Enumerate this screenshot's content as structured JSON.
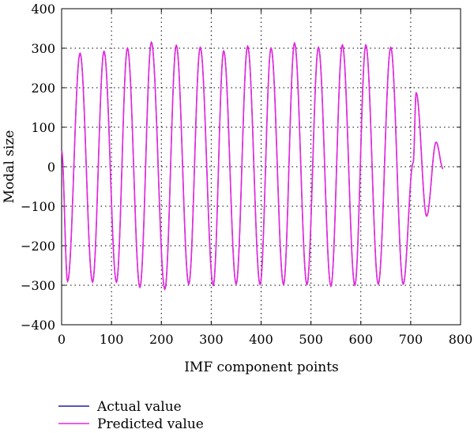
{
  "chart_data": {
    "type": "line",
    "title": "",
    "xlabel": "IMF component points",
    "ylabel": "Modal size",
    "xlim": [
      0,
      800
    ],
    "ylim": [
      -400,
      400
    ],
    "xticks": [
      0,
      100,
      200,
      300,
      400,
      500,
      600,
      700,
      800
    ],
    "yticks": [
      400,
      300,
      200,
      100,
      0,
      -100,
      -200,
      -300,
      -400
    ],
    "grid": true,
    "legend_position": "bottom-left",
    "peaks": [
      [
        0,
        40
      ],
      [
        12,
        -290
      ],
      [
        37,
        287
      ],
      [
        62,
        -292
      ],
      [
        85,
        292
      ],
      [
        110,
        -292
      ],
      [
        132,
        300
      ],
      [
        157,
        -305
      ],
      [
        180,
        315
      ],
      [
        207,
        -310
      ],
      [
        230,
        307
      ],
      [
        255,
        -297
      ],
      [
        278,
        302
      ],
      [
        304,
        -300
      ],
      [
        325,
        293
      ],
      [
        350,
        -297
      ],
      [
        373,
        305
      ],
      [
        398,
        -298
      ],
      [
        420,
        300
      ],
      [
        445,
        -298
      ],
      [
        467,
        313
      ],
      [
        492,
        -298
      ],
      [
        515,
        302
      ],
      [
        540,
        -302
      ],
      [
        563,
        308
      ],
      [
        588,
        -300
      ],
      [
        610,
        308
      ],
      [
        635,
        -297
      ],
      [
        660,
        302
      ],
      [
        685,
        -297
      ],
      [
        705,
        10
      ],
      [
        711,
        187
      ],
      [
        732,
        -125
      ],
      [
        751,
        62
      ],
      [
        765,
        -5
      ]
    ],
    "series": [
      {
        "name": "Actual value",
        "color": "#1f1fa8"
      },
      {
        "name": "Predicted value",
        "color": "#e628e0"
      }
    ]
  }
}
